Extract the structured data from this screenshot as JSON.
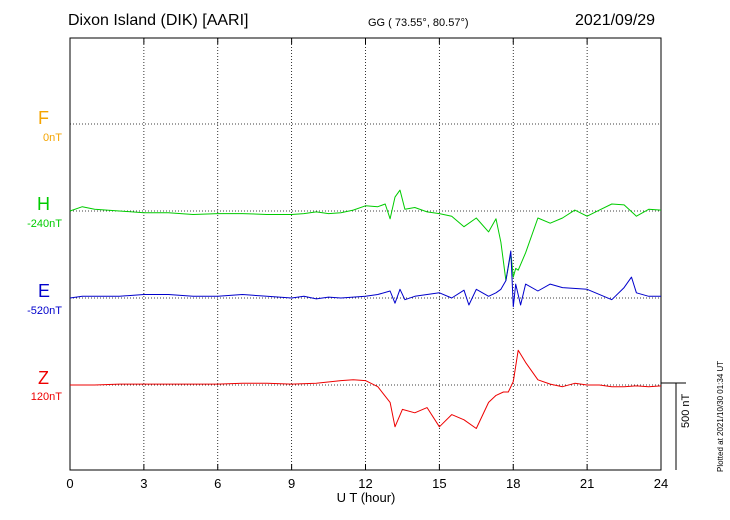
{
  "header": {
    "station": "Dixon Island (DIK)  [AARI]",
    "coords": "GG ( 73.55°,  80.57°)",
    "date": "2021/09/29"
  },
  "channels": [
    {
      "letter": "F",
      "offset": "0nT",
      "color": "#f5a400"
    },
    {
      "letter": "H",
      "offset": "-240nT",
      "color": "#00cc00"
    },
    {
      "letter": "E",
      "offset": "-520nT",
      "color": "#0000cc"
    },
    {
      "letter": "Z",
      "offset": "120nT",
      "color": "#ee0000"
    }
  ],
  "scale_label": "500 nT",
  "plotted_note": "Plotted at 2021/10/30 01:34 UT",
  "chart_data": {
    "type": "line",
    "xlabel": "U T (hour)",
    "x_ticks": [
      "0",
      "3",
      "6",
      "9",
      "12",
      "15",
      "18",
      "21",
      "24"
    ],
    "xlim": [
      0,
      24
    ],
    "units": "nT",
    "grid": true,
    "series": [
      {
        "name": "H",
        "color": "#00cc00",
        "baseline_nT": -240,
        "x": [
          0,
          0.5,
          1,
          2,
          3,
          4,
          5,
          6,
          7,
          8,
          9,
          9.5,
          10,
          10.5,
          11,
          11.5,
          12,
          12.5,
          12.8,
          13,
          13.2,
          13.4,
          13.6,
          14,
          14.5,
          15,
          15.5,
          16,
          16.5,
          17,
          17.3,
          17.5,
          17.7,
          17.9,
          18,
          18.1,
          18.2,
          18.5,
          19,
          19.5,
          20,
          20.5,
          21,
          21.5,
          22,
          22.5,
          23,
          23.5,
          24
        ],
        "values": [
          -240,
          -215,
          -230,
          -240,
          -250,
          -250,
          -260,
          -255,
          -255,
          -260,
          -260,
          -255,
          -245,
          -255,
          -250,
          -235,
          -210,
          -215,
          -200,
          -285,
          -160,
          -120,
          -230,
          -220,
          -245,
          -255,
          -270,
          -330,
          -280,
          -360,
          -285,
          -420,
          -640,
          -480,
          -620,
          -570,
          -580,
          -480,
          -280,
          -310,
          -280,
          -235,
          -270,
          -235,
          -200,
          -205,
          -270,
          -230,
          -235
        ]
      },
      {
        "name": "E",
        "color": "#0000cc",
        "baseline_nT": -520,
        "x": [
          0,
          0.5,
          1,
          2,
          3,
          4,
          5,
          6,
          7,
          8,
          9,
          9.5,
          10,
          10.5,
          11,
          11.5,
          12,
          12.5,
          13,
          13.2,
          13.4,
          13.6,
          14,
          14.5,
          15,
          15.5,
          16,
          16.2,
          16.5,
          17,
          17.3,
          17.5,
          17.7,
          17.9,
          18,
          18.1,
          18.3,
          18.5,
          19,
          19.5,
          20,
          21,
          22,
          22.5,
          22.8,
          23,
          23.5,
          24
        ],
        "values": [
          -520,
          -510,
          -510,
          -510,
          -500,
          -500,
          -510,
          -510,
          -500,
          -510,
          -520,
          -510,
          -525,
          -515,
          -520,
          -515,
          -510,
          -500,
          -480,
          -550,
          -470,
          -530,
          -510,
          -500,
          -490,
          -520,
          -475,
          -560,
          -470,
          -510,
          -490,
          -470,
          -420,
          -250,
          -570,
          -440,
          -560,
          -440,
          -480,
          -440,
          -460,
          -470,
          -530,
          -460,
          -400,
          -490,
          -510,
          -510
        ]
      },
      {
        "name": "Z",
        "color": "#ee0000",
        "baseline_nT": 120,
        "x": [
          0,
          1,
          2,
          3,
          4,
          5,
          6,
          7,
          8,
          9,
          10,
          11,
          11.5,
          12,
          12.5,
          13,
          13.2,
          13.5,
          14,
          14.5,
          15,
          15.5,
          16,
          16.5,
          17,
          17.3,
          17.6,
          17.8,
          18,
          18.2,
          18.5,
          19,
          19.5,
          20,
          20.5,
          21,
          21.5,
          22,
          22.5,
          23,
          23.5,
          24
        ],
        "values": [
          120,
          120,
          125,
          125,
          125,
          125,
          125,
          130,
          130,
          125,
          130,
          145,
          150,
          145,
          110,
          20,
          -120,
          -20,
          -40,
          -10,
          -120,
          -50,
          -80,
          -130,
          20,
          60,
          80,
          80,
          140,
          320,
          250,
          150,
          125,
          110,
          130,
          120,
          120,
          110,
          110,
          115,
          110,
          115
        ]
      }
    ]
  }
}
